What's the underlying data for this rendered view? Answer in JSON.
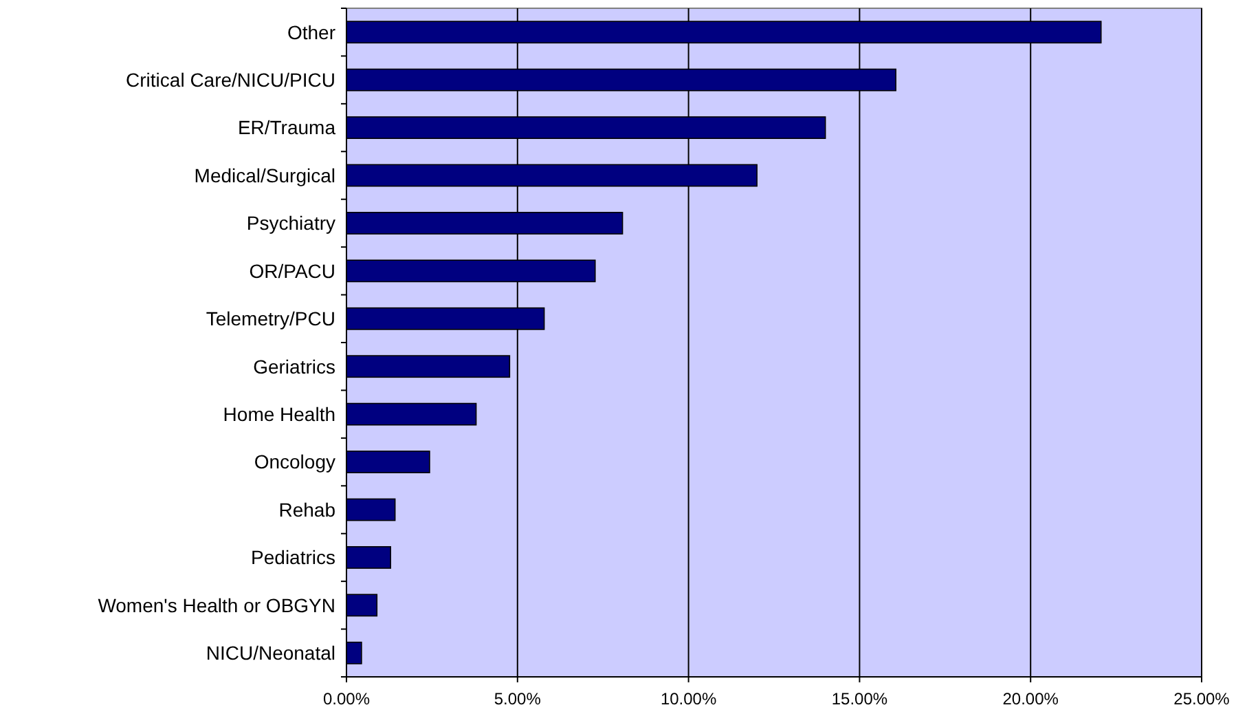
{
  "chart_data": {
    "type": "bar",
    "orientation": "horizontal",
    "categories": [
      "Other",
      "Critical Care/NICU/PICU",
      "ER/Trauma",
      "Medical/Surgical",
      "Psychiatry",
      "OR/PACU",
      "Telemetry/PCU",
      "Geriatrics",
      "Home Health",
      "Oncology",
      "Rehab",
      "Pediatrics",
      "Women's Health or OBGYN",
      "NICU/Neonatal"
    ],
    "values": [
      22.06,
      16.06,
      14.0,
      12.0,
      8.07,
      7.27,
      5.78,
      4.77,
      3.79,
      2.43,
      1.42,
      1.29,
      0.89,
      0.44
    ],
    "color": "#000080",
    "xlim": [
      0,
      25
    ],
    "xticks": [
      {
        "value": 0,
        "label": "0.00%"
      },
      {
        "value": 5,
        "label": "5.00%"
      },
      {
        "value": 10,
        "label": "10.00%"
      },
      {
        "value": 15,
        "label": "15.00%"
      },
      {
        "value": 20,
        "label": "20.00%"
      },
      {
        "value": 25,
        "label": "25.00%"
      }
    ],
    "grid": "x"
  }
}
